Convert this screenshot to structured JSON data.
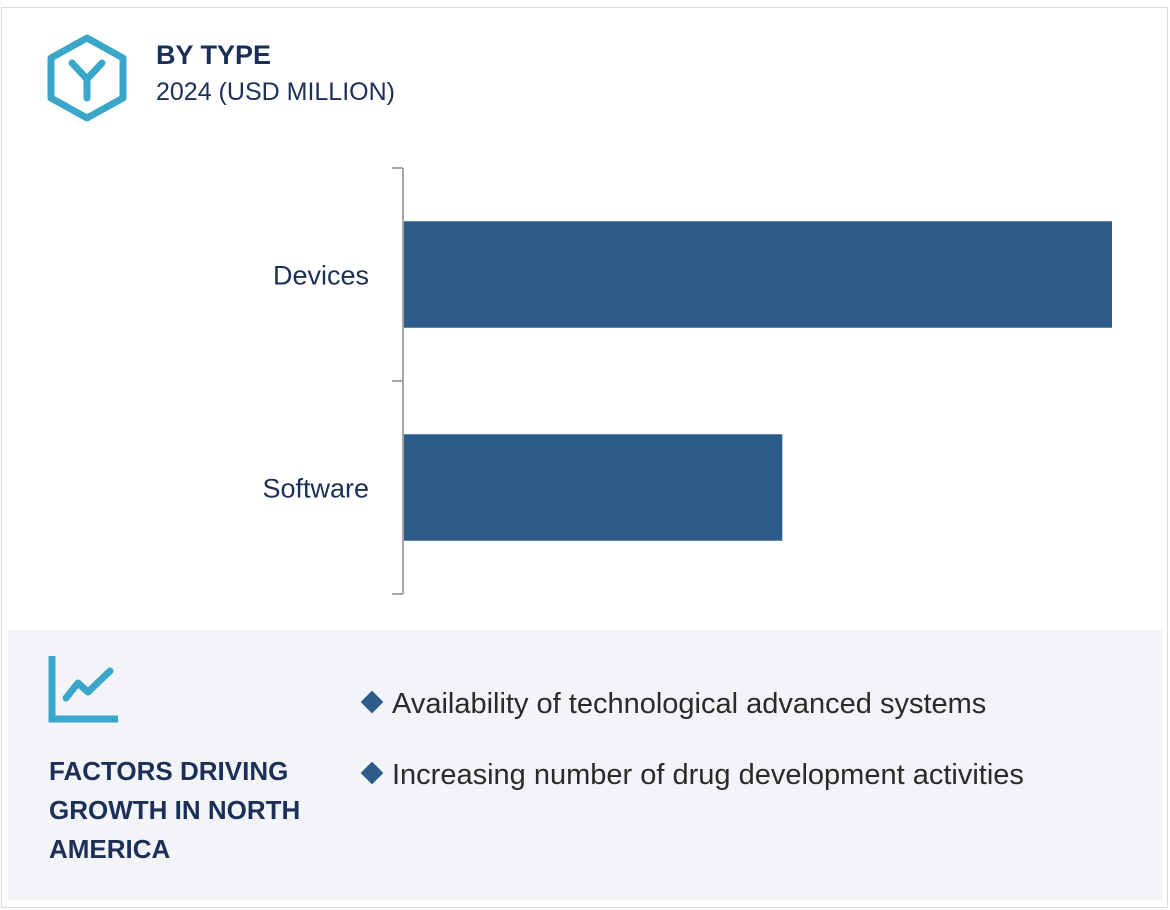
{
  "header": {
    "title": "BY TYPE",
    "subtitle": "2024 (USD MILLION)",
    "icon": "hexagon-y-icon"
  },
  "chart_data": {
    "type": "bar",
    "orientation": "horizontal",
    "categories": [
      "Devices",
      "Software"
    ],
    "values": [
      100,
      53.5
    ],
    "title": "BY TYPE",
    "subtitle": "2024 (USD MILLION)",
    "xlabel": "",
    "ylabel": "",
    "xlim": [
      0,
      100
    ],
    "value_axis_shown": false,
    "grid": false,
    "bar_color": "#2e5c8a",
    "axis_color": "#a6a6a6"
  },
  "factors": {
    "icon": "trend-chart-icon",
    "title": "FACTORS DRIVING GROWTH IN NORTH AMERICA",
    "items": [
      "Availability of technological advanced systems",
      "Increasing number of drug development activities"
    ]
  },
  "colors": {
    "accent": "#3aa6c9",
    "text": "#1b2f57",
    "bar": "#2e5c8a",
    "panel_bg": "#f3f4f8"
  }
}
